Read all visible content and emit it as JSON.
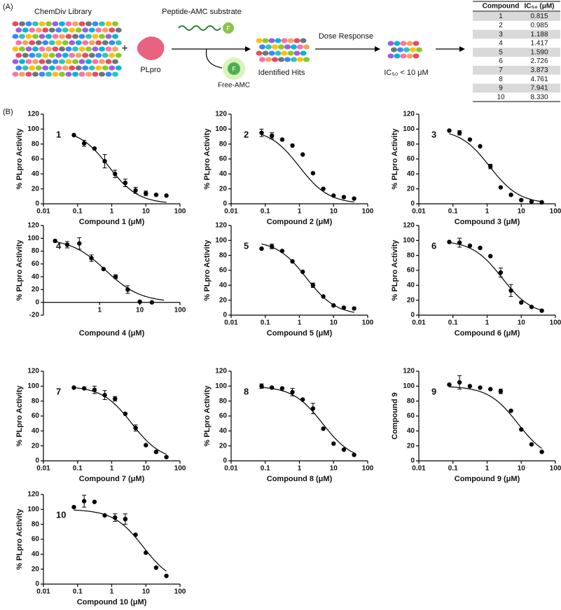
{
  "panel_a": {
    "label": "(A)",
    "library": "ChemDiv Library",
    "plus": "+",
    "substrate": "Peptide-AMC substrate",
    "fluor": "F",
    "enzyme": "PLpro",
    "product": "Free-AMC",
    "hits": "Identified Hits",
    "step": "Dose Response",
    "criterion": "IC₅₀ < 10 μM"
  },
  "table": {
    "header": [
      "Compound",
      "IC₅₀ (μM)"
    ],
    "rows": [
      [
        "1",
        "0.815"
      ],
      [
        "2",
        "0.985"
      ],
      [
        "3",
        "1.188"
      ],
      [
        "4",
        "1.417"
      ],
      [
        "5",
        "1.590"
      ],
      [
        "6",
        "2.726"
      ],
      [
        "7",
        "3.873"
      ],
      [
        "8",
        "4.761"
      ],
      [
        "9",
        "7.941"
      ],
      [
        "10",
        "8.330"
      ]
    ]
  },
  "panel_b_label": "(B)",
  "chart_data": [
    {
      "type": "scatter",
      "label": "1",
      "xlabel": "Compound 1 (μM)",
      "ylabel": "% PLpro Activity",
      "x": [
        0.078,
        0.156,
        0.313,
        0.625,
        1.25,
        2.5,
        5,
        10,
        20,
        40
      ],
      "y": [
        92,
        81,
        74,
        57,
        40,
        28,
        18,
        14,
        12,
        11
      ],
      "errors": [
        null,
        4,
        null,
        9,
        5,
        5,
        4,
        3,
        null,
        null
      ],
      "xlim": [
        0.01,
        100
      ],
      "xticks": [
        0.01,
        0.1,
        1,
        10,
        100
      ],
      "ylim": [
        0,
        120
      ],
      "yticks": [
        0,
        20,
        40,
        60,
        80,
        100,
        120
      ],
      "xscale": "log",
      "color": "#000000"
    },
    {
      "type": "scatter",
      "label": "2",
      "xlabel": "Compound 2 (μM)",
      "ylabel": "% PLpro Activity",
      "x": [
        0.078,
        0.156,
        0.313,
        0.625,
        1.25,
        2.5,
        5,
        10,
        20,
        40
      ],
      "y": [
        95,
        91,
        86,
        78,
        66,
        41,
        20,
        11,
        9,
        7
      ],
      "errors": [
        5,
        4,
        null,
        null,
        null,
        null,
        null,
        null,
        null,
        null
      ],
      "xlim": [
        0.01,
        100
      ],
      "xticks": [
        0.01,
        0.1,
        1,
        10,
        100
      ],
      "ylim": [
        0,
        120
      ],
      "yticks": [
        0,
        20,
        40,
        60,
        80,
        100,
        120
      ],
      "xscale": "log",
      "color": "#000000"
    },
    {
      "type": "scatter",
      "label": "3",
      "xlabel": "Compound 3 (μM)",
      "ylabel": "% PLpro Activity",
      "x": [
        0.078,
        0.156,
        0.313,
        0.625,
        1.25,
        2.5,
        5,
        10,
        20,
        40
      ],
      "y": [
        98,
        95,
        86,
        77,
        50,
        22,
        12,
        5,
        3,
        2
      ],
      "errors": [
        null,
        3,
        null,
        null,
        3,
        null,
        null,
        null,
        null,
        null
      ],
      "xlim": [
        0.01,
        100
      ],
      "xticks": [
        0.01,
        0.1,
        1,
        10,
        100
      ],
      "ylim": [
        0,
        120
      ],
      "yticks": [
        0,
        20,
        40,
        60,
        80,
        100,
        120
      ],
      "xscale": "log",
      "color": "#000000"
    },
    {
      "type": "scatter",
      "label": "4",
      "xlabel": "Compound 4 (μM)",
      "ylabel": "% PLpro Activity",
      "x": [
        0.078,
        0.156,
        0.313,
        0.625,
        1.25,
        2.5,
        5,
        10,
        20,
        40
      ],
      "y": [
        96,
        90,
        92,
        69,
        52,
        40,
        20,
        1,
        0,
        null
      ],
      "errors": [
        null,
        5,
        9,
        5,
        null,
        3,
        6,
        null,
        null,
        null
      ],
      "xlim": [
        0.04,
        100
      ],
      "xticks": [
        1,
        10,
        100
      ],
      "ylim": [
        -20,
        120
      ],
      "yticks": [
        -20,
        0,
        20,
        40,
        60,
        80,
        100,
        120
      ],
      "xscale": "log",
      "color": "#000000"
    },
    {
      "type": "scatter",
      "label": "5",
      "xlabel": "Compound 5 (μM)",
      "ylabel": "% PLpro Activity",
      "x": [
        0.078,
        0.156,
        0.313,
        0.625,
        1.25,
        2.5,
        5,
        10,
        20,
        40
      ],
      "y": [
        89,
        92,
        86,
        72,
        58,
        40,
        25,
        13,
        10,
        9
      ],
      "errors": [
        null,
        3,
        null,
        null,
        null,
        3,
        null,
        null,
        null,
        null
      ],
      "xlim": [
        0.01,
        100
      ],
      "xticks": [
        0.01,
        0.1,
        1,
        10,
        100
      ],
      "ylim": [
        0,
        120
      ],
      "yticks": [
        0,
        20,
        40,
        60,
        80,
        100,
        120
      ],
      "xscale": "log",
      "color": "#000000"
    },
    {
      "type": "scatter",
      "label": "6",
      "xlabel": "Compound 6 (μM)",
      "ylabel": "% PLpro Activity",
      "x": [
        0.078,
        0.156,
        0.313,
        0.625,
        1.25,
        2.5,
        5,
        10,
        20,
        40
      ],
      "y": [
        98,
        97,
        93,
        90,
        79,
        57,
        33,
        17,
        11,
        6
      ],
      "errors": [
        null,
        6,
        null,
        null,
        null,
        6,
        8,
        null,
        null,
        null
      ],
      "xlim": [
        0.01,
        100
      ],
      "xticks": [
        0.01,
        0.1,
        1,
        10,
        100
      ],
      "ylim": [
        0,
        120
      ],
      "yticks": [
        0,
        20,
        40,
        60,
        80,
        100,
        120
      ],
      "xscale": "log",
      "color": "#000000"
    },
    {
      "type": "scatter",
      "label": "7",
      "xlabel": "Compound 7 (μM)",
      "ylabel": "% PLpro Activity",
      "x": [
        0.078,
        0.156,
        0.313,
        0.625,
        1.25,
        2.5,
        5,
        10,
        20,
        40
      ],
      "y": [
        98,
        97,
        95,
        88,
        83,
        63,
        44,
        21,
        12,
        5
      ],
      "errors": [
        null,
        null,
        5,
        6,
        3,
        null,
        4,
        null,
        null,
        null
      ],
      "xlim": [
        0.01,
        100
      ],
      "xticks": [
        0.01,
        0.1,
        1,
        10,
        100
      ],
      "ylim": [
        0,
        120
      ],
      "yticks": [
        0,
        20,
        40,
        60,
        80,
        100,
        120
      ],
      "xscale": "log",
      "color": "#000000"
    },
    {
      "type": "scatter",
      "label": "8",
      "xlabel": "Compound 8 (μM)",
      "ylabel": "% PLpro Activity",
      "x": [
        0.078,
        0.156,
        0.313,
        0.625,
        1.25,
        2.5,
        5,
        10,
        20,
        40
      ],
      "y": [
        100,
        98,
        97,
        92,
        82,
        70,
        43,
        23,
        15,
        8
      ],
      "errors": [
        3,
        null,
        null,
        5,
        null,
        7,
        null,
        null,
        null,
        null
      ],
      "xlim": [
        0.01,
        100
      ],
      "xticks": [
        0.01,
        0.1,
        1,
        10,
        100
      ],
      "ylim": [
        0,
        120
      ],
      "yticks": [
        0,
        20,
        40,
        60,
        80,
        100,
        120
      ],
      "xscale": "log",
      "color": "#000000"
    },
    {
      "type": "scatter",
      "label": "9",
      "xlabel": "Compound 9 (μM)",
      "ylabel": "Compound 9",
      "x": [
        0.078,
        0.156,
        0.313,
        0.625,
        1.25,
        2.5,
        5,
        10,
        20,
        40
      ],
      "y": [
        102,
        105,
        100,
        98,
        96,
        93,
        67,
        42,
        22,
        12
      ],
      "errors": [
        null,
        9,
        null,
        null,
        null,
        3,
        null,
        null,
        null,
        null
      ],
      "xlim": [
        0.01,
        100
      ],
      "xticks": [
        0.01,
        0.1,
        1,
        10,
        100
      ],
      "ylim": [
        0,
        120
      ],
      "yticks": [
        0,
        20,
        40,
        60,
        80,
        100,
        120
      ],
      "xscale": "log",
      "color": "#000000"
    },
    {
      "type": "scatter",
      "label": "10",
      "xlabel": "Compound 10 (μM)",
      "ylabel": "% PLpro Activity",
      "x": [
        0.078,
        0.156,
        0.313,
        0.625,
        1.25,
        2.5,
        5,
        10,
        20,
        40
      ],
      "y": [
        103,
        111,
        110,
        92,
        89,
        87,
        66,
        42,
        22,
        11
      ],
      "errors": [
        null,
        8,
        null,
        null,
        5,
        7,
        null,
        null,
        null,
        null
      ],
      "xlim": [
        0.01,
        100
      ],
      "xticks": [
        0.01,
        0.1,
        1,
        10,
        100
      ],
      "ylim": [
        0,
        120
      ],
      "yticks": [
        0,
        20,
        40,
        60,
        80,
        100,
        120
      ],
      "xscale": "log",
      "color": "#000000"
    }
  ]
}
